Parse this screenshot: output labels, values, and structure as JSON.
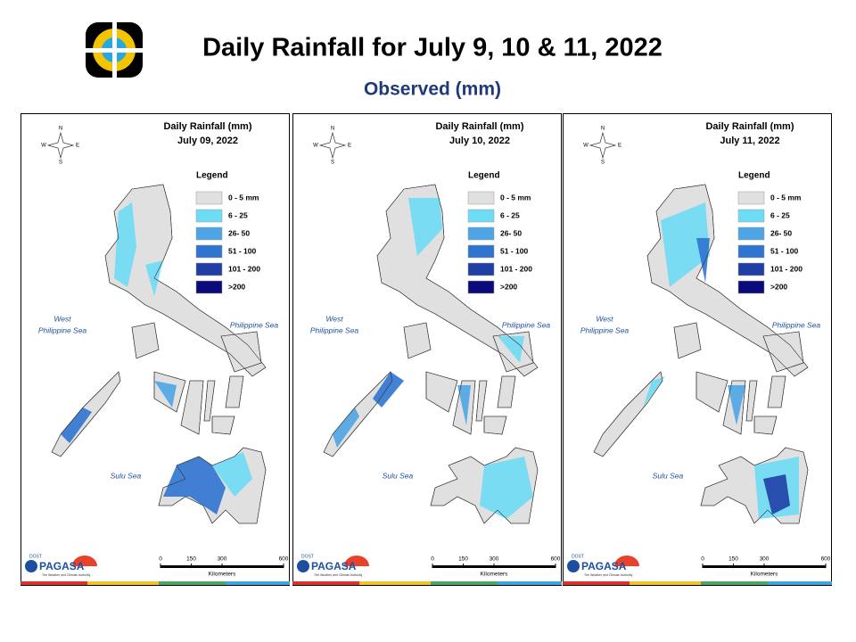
{
  "header": {
    "title": "Daily Rainfall for July 9, 10 & 11, 2022",
    "subtitle": "Observed (mm)"
  },
  "panels": [
    {
      "title": "Daily Rainfall (mm)",
      "date": "July 09, 2022"
    },
    {
      "title": "Daily Rainfall (mm)",
      "date": "July 10, 2022"
    },
    {
      "title": "Daily Rainfall (mm)",
      "date": "July 11, 2022"
    }
  ],
  "legend": {
    "title": "Legend",
    "items": [
      {
        "label": "0 - 5 mm",
        "color": "#e0e0e0"
      },
      {
        "label": "6 - 25",
        "color": "#6fdcf5"
      },
      {
        "label": "26- 50",
        "color": "#4ea5e6"
      },
      {
        "label": "51 - 100",
        "color": "#2f74d0"
      },
      {
        "label": "101 - 200",
        "color": "#1f3fa6"
      },
      {
        "label": ">200",
        "color": "#0a0a7a"
      }
    ]
  },
  "compass": [
    "N",
    "E",
    "S",
    "W"
  ],
  "seas": {
    "west_line1": "West",
    "west_line2": "Philippine Sea",
    "east": "Philippine Sea",
    "south": "Sulu Sea"
  },
  "scale": {
    "ticks": [
      0,
      150,
      300,
      600
    ],
    "unit": "Kilometers"
  },
  "logo": {
    "top": "DOST",
    "name": "PAGASA",
    "tagline": "The Weather and Climate Authority"
  }
}
